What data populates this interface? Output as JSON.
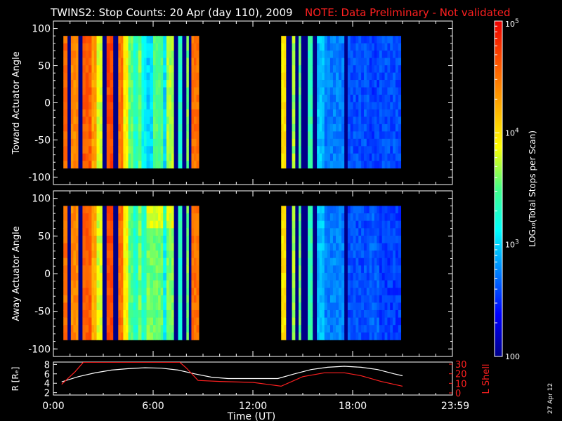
{
  "header": {
    "title": "TWINS2: Stop Counts: 20 Apr (day 110), 2009",
    "note": "NOTE: Data Preliminary - Not validated",
    "note_color": "#ff2020"
  },
  "colorbar": {
    "label": "LOG₁₀(Total Stops per Scan)",
    "ticks": [
      {
        "label": "10",
        "sup": "5",
        "value": 100000
      },
      {
        "label": "10",
        "sup": "4",
        "value": 10000
      },
      {
        "label": "10",
        "sup": "3",
        "value": 1000
      },
      {
        "label": "100",
        "sup": "",
        "value": 100
      }
    ]
  },
  "footer": {
    "date_stamp": "27 Apr 12"
  },
  "chart_data": [
    {
      "type": "heatmap",
      "name": "toward",
      "ylabel": "Toward Actuator Angle",
      "ylim": [
        -110,
        110
      ],
      "yticks": [
        "100",
        "50",
        "0",
        "-50",
        "-100"
      ],
      "xlim": [
        0,
        24
      ],
      "value_range_log10": [
        2,
        5
      ],
      "angle_range": [
        -88,
        90
      ],
      "stripes": [
        {
          "t0": 0.6,
          "t1": 0.85,
          "v": 4.55
        },
        {
          "t0": 0.85,
          "t1": 1.05,
          "v": 2.0
        },
        {
          "t0": 1.05,
          "t1": 1.5,
          "v": 4.4
        },
        {
          "t0": 1.5,
          "t1": 1.75,
          "v": 2.0
        },
        {
          "t0": 1.75,
          "t1": 2.3,
          "v": 4.6
        },
        {
          "t0": 2.3,
          "t1": 2.6,
          "v": 4.3
        },
        {
          "t0": 2.6,
          "t1": 2.95,
          "v": 3.8
        },
        {
          "t0": 2.95,
          "t1": 3.2,
          "v": 2.0
        },
        {
          "t0": 3.2,
          "t1": 3.6,
          "v": 4.7
        },
        {
          "t0": 3.6,
          "t1": 3.9,
          "v": 2.0
        },
        {
          "t0": 3.9,
          "t1": 4.2,
          "v": 4.5
        },
        {
          "t0": 4.2,
          "t1": 4.5,
          "v": 3.9
        },
        {
          "t0": 4.5,
          "t1": 4.8,
          "v": 3.55
        },
        {
          "t0": 4.8,
          "t1": 5.1,
          "v": 3.3
        },
        {
          "t0": 5.1,
          "t1": 5.3,
          "v": 3.6
        },
        {
          "t0": 5.3,
          "t1": 5.6,
          "v": 3.15
        },
        {
          "t0": 5.6,
          "t1": 6.0,
          "v": 3.0
        },
        {
          "t0": 6.0,
          "t1": 6.6,
          "v": 3.5
        },
        {
          "t0": 6.6,
          "t1": 6.8,
          "v": 3.0
        },
        {
          "t0": 6.8,
          "t1": 7.25,
          "v": 3.7
        },
        {
          "t0": 7.25,
          "t1": 7.5,
          "v": 2.0
        },
        {
          "t0": 7.5,
          "t1": 7.75,
          "v": 3.3
        },
        {
          "t0": 7.75,
          "t1": 8.0,
          "v": 2.0
        },
        {
          "t0": 8.0,
          "t1": 8.15,
          "v": 3.6
        },
        {
          "t0": 8.15,
          "t1": 8.3,
          "v": 2.0
        },
        {
          "t0": 8.3,
          "t1": 8.75,
          "v": 4.5
        },
        {
          "t0": 13.7,
          "t1": 14.0,
          "v": 4.0
        },
        {
          "t0": 14.0,
          "t1": 14.35,
          "v": 2.0
        },
        {
          "t0": 14.35,
          "t1": 14.55,
          "v": 3.7
        },
        {
          "t0": 14.55,
          "t1": 14.75,
          "v": 2.0
        },
        {
          "t0": 14.75,
          "t1": 14.9,
          "v": 3.55
        },
        {
          "t0": 14.9,
          "t1": 15.3,
          "v": 2.0
        },
        {
          "t0": 15.3,
          "t1": 15.6,
          "v": 3.4
        },
        {
          "t0": 15.6,
          "t1": 15.85,
          "v": 2.0
        },
        {
          "t0": 15.85,
          "t1": 16.3,
          "v": 2.95
        },
        {
          "t0": 16.3,
          "t1": 17.5,
          "v": 2.75
        },
        {
          "t0": 17.5,
          "t1": 17.7,
          "v": 2.0
        },
        {
          "t0": 17.7,
          "t1": 19.0,
          "v": 2.6
        },
        {
          "t0": 19.0,
          "t1": 19.6,
          "v": 2.55
        },
        {
          "t0": 19.6,
          "t1": 20.9,
          "v": 2.6
        }
      ]
    },
    {
      "type": "heatmap",
      "name": "away",
      "ylabel": "Away Actuator Angle",
      "ylim": [
        -110,
        110
      ],
      "yticks": [
        "100",
        "50",
        "0",
        "-50",
        "-100"
      ],
      "xlim": [
        0,
        24
      ],
      "value_range_log10": [
        2,
        5
      ],
      "angle_range": [
        -88,
        90
      ],
      "stripes": [
        {
          "t0": 0.6,
          "t1": 0.85,
          "v": 4.5
        },
        {
          "t0": 0.85,
          "t1": 1.05,
          "v": 2.0
        },
        {
          "t0": 1.05,
          "t1": 1.5,
          "v": 4.4
        },
        {
          "t0": 1.5,
          "t1": 1.75,
          "v": 2.0
        },
        {
          "t0": 1.75,
          "t1": 2.3,
          "v": 4.6
        },
        {
          "t0": 2.3,
          "t1": 2.6,
          "v": 4.25
        },
        {
          "t0": 2.6,
          "t1": 2.95,
          "v": 3.8
        },
        {
          "t0": 2.95,
          "t1": 3.2,
          "v": 2.0
        },
        {
          "t0": 3.2,
          "t1": 3.6,
          "v": 4.7
        },
        {
          "t0": 3.6,
          "t1": 3.9,
          "v": 2.0
        },
        {
          "t0": 3.9,
          "t1": 4.2,
          "v": 4.5
        },
        {
          "t0": 4.2,
          "t1": 4.5,
          "v": 3.9
        },
        {
          "t0": 4.5,
          "t1": 4.8,
          "v": 3.5
        },
        {
          "t0": 4.8,
          "t1": 5.1,
          "v": 3.3
        },
        {
          "t0": 5.1,
          "t1": 5.3,
          "v": 3.6
        },
        {
          "t0": 5.3,
          "t1": 5.6,
          "v": 3.3
        },
        {
          "t0": 5.6,
          "t1": 6.0,
          "v": 3.6
        },
        {
          "t0": 6.0,
          "t1": 6.6,
          "v": 3.55
        },
        {
          "t0": 6.6,
          "t1": 6.8,
          "v": 3.1
        },
        {
          "t0": 6.8,
          "t1": 7.25,
          "v": 3.6
        },
        {
          "t0": 7.25,
          "t1": 7.5,
          "v": 2.0
        },
        {
          "t0": 7.5,
          "t1": 7.75,
          "v": 3.3
        },
        {
          "t0": 7.75,
          "t1": 8.0,
          "v": 2.0
        },
        {
          "t0": 8.0,
          "t1": 8.15,
          "v": 3.6
        },
        {
          "t0": 8.15,
          "t1": 8.3,
          "v": 2.0
        },
        {
          "t0": 8.3,
          "t1": 8.75,
          "v": 4.5
        },
        {
          "t0": 13.7,
          "t1": 14.0,
          "v": 4.0
        },
        {
          "t0": 14.0,
          "t1": 14.35,
          "v": 2.0
        },
        {
          "t0": 14.35,
          "t1": 14.55,
          "v": 3.7
        },
        {
          "t0": 14.55,
          "t1": 14.75,
          "v": 2.0
        },
        {
          "t0": 14.75,
          "t1": 14.9,
          "v": 3.55
        },
        {
          "t0": 14.9,
          "t1": 15.3,
          "v": 2.0
        },
        {
          "t0": 15.3,
          "t1": 15.6,
          "v": 3.4
        },
        {
          "t0": 15.6,
          "t1": 15.85,
          "v": 2.0
        },
        {
          "t0": 15.85,
          "t1": 16.3,
          "v": 2.95
        },
        {
          "t0": 16.3,
          "t1": 17.5,
          "v": 2.75
        },
        {
          "t0": 17.5,
          "t1": 17.7,
          "v": 2.0
        },
        {
          "t0": 17.7,
          "t1": 19.0,
          "v": 2.6
        },
        {
          "t0": 19.0,
          "t1": 19.6,
          "v": 2.65
        },
        {
          "t0": 19.6,
          "t1": 20.9,
          "v": 2.55
        }
      ]
    },
    {
      "type": "line",
      "name": "orbit",
      "ylabel": "R [Rₑ]",
      "y2label": "L Shell",
      "ylim": [
        1.5,
        8.5
      ],
      "yticks": [
        "8",
        "6",
        "4",
        "2"
      ],
      "y2lim": [
        0,
        30
      ],
      "y2ticks": [
        "30",
        "20",
        "10",
        "0"
      ],
      "xlim": [
        0,
        24
      ],
      "xlabel": "Time (UT)",
      "xticks": [
        "0:00",
        "6:00",
        "12:00",
        "18:00",
        "23:59"
      ],
      "series": [
        {
          "axis": "left",
          "color": "#ffffff",
          "x": [
            0.5,
            1.5,
            2.5,
            3.5,
            4.5,
            5.5,
            6.5,
            7.5,
            8.5,
            9.5,
            10.5,
            11.5,
            12.5,
            13.5,
            14.5,
            15.5,
            16.5,
            17.5,
            18.5,
            19.5,
            20.5,
            21.0
          ],
          "y": [
            4.3,
            5.4,
            6.2,
            6.8,
            7.1,
            7.3,
            7.2,
            6.8,
            6.0,
            5.3,
            5.0,
            5.0,
            5.0,
            5.0,
            6.0,
            6.9,
            7.4,
            7.6,
            7.4,
            6.9,
            6.0,
            5.6
          ]
        },
        {
          "axis": "right",
          "color": "#ff2020",
          "x": [
            0.5,
            1.3,
            1.8,
            7.6,
            8.0,
            8.7,
            10.0,
            12.0,
            13.7,
            15.0,
            16.3,
            17.5,
            18.5,
            19.7,
            21.0
          ],
          "y": [
            9,
            22,
            32,
            32,
            26,
            13,
            12,
            11,
            7,
            17,
            21,
            21,
            18,
            12,
            7
          ]
        }
      ]
    }
  ]
}
